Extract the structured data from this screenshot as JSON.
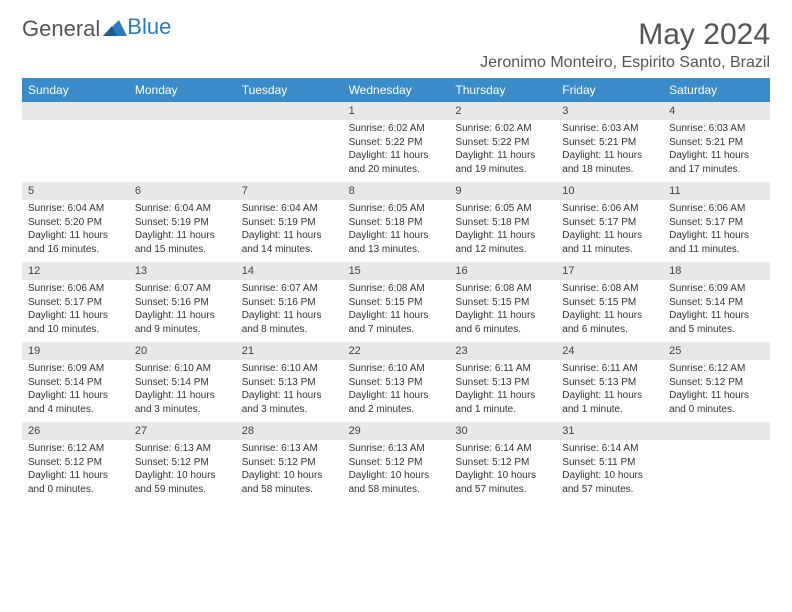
{
  "brand": {
    "part1": "General",
    "part2": "Blue"
  },
  "title": "May 2024",
  "location": "Jeronimo Monteiro, Espirito Santo, Brazil",
  "colors": {
    "header_bg": "#3b8bc9",
    "header_text": "#ffffff",
    "daynum_bg": "#e8e8e8",
    "body_text": "#333333",
    "title_text": "#555555",
    "brand_gray": "#555555",
    "brand_blue": "#2d7bbf",
    "background": "#ffffff"
  },
  "typography": {
    "title_fontsize": 30,
    "location_fontsize": 16,
    "header_fontsize": 12,
    "daynum_fontsize": 11,
    "cell_fontsize": 10
  },
  "day_names": [
    "Sunday",
    "Monday",
    "Tuesday",
    "Wednesday",
    "Thursday",
    "Friday",
    "Saturday"
  ],
  "weeks": [
    [
      {
        "n": "",
        "t": ""
      },
      {
        "n": "",
        "t": ""
      },
      {
        "n": "",
        "t": ""
      },
      {
        "n": "1",
        "t": "Sunrise: 6:02 AM\nSunset: 5:22 PM\nDaylight: 11 hours and 20 minutes."
      },
      {
        "n": "2",
        "t": "Sunrise: 6:02 AM\nSunset: 5:22 PM\nDaylight: 11 hours and 19 minutes."
      },
      {
        "n": "3",
        "t": "Sunrise: 6:03 AM\nSunset: 5:21 PM\nDaylight: 11 hours and 18 minutes."
      },
      {
        "n": "4",
        "t": "Sunrise: 6:03 AM\nSunset: 5:21 PM\nDaylight: 11 hours and 17 minutes."
      }
    ],
    [
      {
        "n": "5",
        "t": "Sunrise: 6:04 AM\nSunset: 5:20 PM\nDaylight: 11 hours and 16 minutes."
      },
      {
        "n": "6",
        "t": "Sunrise: 6:04 AM\nSunset: 5:19 PM\nDaylight: 11 hours and 15 minutes."
      },
      {
        "n": "7",
        "t": "Sunrise: 6:04 AM\nSunset: 5:19 PM\nDaylight: 11 hours and 14 minutes."
      },
      {
        "n": "8",
        "t": "Sunrise: 6:05 AM\nSunset: 5:18 PM\nDaylight: 11 hours and 13 minutes."
      },
      {
        "n": "9",
        "t": "Sunrise: 6:05 AM\nSunset: 5:18 PM\nDaylight: 11 hours and 12 minutes."
      },
      {
        "n": "10",
        "t": "Sunrise: 6:06 AM\nSunset: 5:17 PM\nDaylight: 11 hours and 11 minutes."
      },
      {
        "n": "11",
        "t": "Sunrise: 6:06 AM\nSunset: 5:17 PM\nDaylight: 11 hours and 11 minutes."
      }
    ],
    [
      {
        "n": "12",
        "t": "Sunrise: 6:06 AM\nSunset: 5:17 PM\nDaylight: 11 hours and 10 minutes."
      },
      {
        "n": "13",
        "t": "Sunrise: 6:07 AM\nSunset: 5:16 PM\nDaylight: 11 hours and 9 minutes."
      },
      {
        "n": "14",
        "t": "Sunrise: 6:07 AM\nSunset: 5:16 PM\nDaylight: 11 hours and 8 minutes."
      },
      {
        "n": "15",
        "t": "Sunrise: 6:08 AM\nSunset: 5:15 PM\nDaylight: 11 hours and 7 minutes."
      },
      {
        "n": "16",
        "t": "Sunrise: 6:08 AM\nSunset: 5:15 PM\nDaylight: 11 hours and 6 minutes."
      },
      {
        "n": "17",
        "t": "Sunrise: 6:08 AM\nSunset: 5:15 PM\nDaylight: 11 hours and 6 minutes."
      },
      {
        "n": "18",
        "t": "Sunrise: 6:09 AM\nSunset: 5:14 PM\nDaylight: 11 hours and 5 minutes."
      }
    ],
    [
      {
        "n": "19",
        "t": "Sunrise: 6:09 AM\nSunset: 5:14 PM\nDaylight: 11 hours and 4 minutes."
      },
      {
        "n": "20",
        "t": "Sunrise: 6:10 AM\nSunset: 5:14 PM\nDaylight: 11 hours and 3 minutes."
      },
      {
        "n": "21",
        "t": "Sunrise: 6:10 AM\nSunset: 5:13 PM\nDaylight: 11 hours and 3 minutes."
      },
      {
        "n": "22",
        "t": "Sunrise: 6:10 AM\nSunset: 5:13 PM\nDaylight: 11 hours and 2 minutes."
      },
      {
        "n": "23",
        "t": "Sunrise: 6:11 AM\nSunset: 5:13 PM\nDaylight: 11 hours and 1 minute."
      },
      {
        "n": "24",
        "t": "Sunrise: 6:11 AM\nSunset: 5:13 PM\nDaylight: 11 hours and 1 minute."
      },
      {
        "n": "25",
        "t": "Sunrise: 6:12 AM\nSunset: 5:12 PM\nDaylight: 11 hours and 0 minutes."
      }
    ],
    [
      {
        "n": "26",
        "t": "Sunrise: 6:12 AM\nSunset: 5:12 PM\nDaylight: 11 hours and 0 minutes."
      },
      {
        "n": "27",
        "t": "Sunrise: 6:13 AM\nSunset: 5:12 PM\nDaylight: 10 hours and 59 minutes."
      },
      {
        "n": "28",
        "t": "Sunrise: 6:13 AM\nSunset: 5:12 PM\nDaylight: 10 hours and 58 minutes."
      },
      {
        "n": "29",
        "t": "Sunrise: 6:13 AM\nSunset: 5:12 PM\nDaylight: 10 hours and 58 minutes."
      },
      {
        "n": "30",
        "t": "Sunrise: 6:14 AM\nSunset: 5:12 PM\nDaylight: 10 hours and 57 minutes."
      },
      {
        "n": "31",
        "t": "Sunrise: 6:14 AM\nSunset: 5:11 PM\nDaylight: 10 hours and 57 minutes."
      },
      {
        "n": "",
        "t": ""
      }
    ]
  ]
}
